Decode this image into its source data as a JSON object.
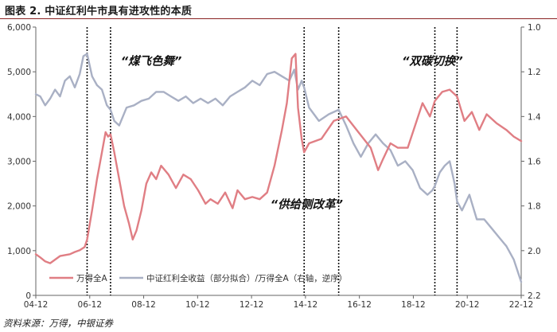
{
  "header": {
    "title": "图表 2. 中证红利牛市具有进攻性的本质"
  },
  "footer": {
    "source": "资料来源：万得，中银证券"
  },
  "colors": {
    "wind_all_a": "#e07e84",
    "dividend_return": "#a9b0c4",
    "title_rule": "#8b2323",
    "axis": "#666666"
  },
  "chart_data": {
    "type": "line",
    "x_ticks": [
      "04-12",
      "06-12",
      "08-12",
      "10-12",
      "12-12",
      "14-12",
      "16-12",
      "18-12",
      "20-12",
      "22-12"
    ],
    "x_range": [
      2004.92,
      2024.6
    ],
    "left_axis": {
      "ticks": [
        "0",
        "1,000",
        "2,000",
        "3,000",
        "4,000",
        "5,000",
        "6,000"
      ],
      "range": [
        0,
        6000
      ]
    },
    "right_axis": {
      "ticks": [
        "1.0",
        "1.2",
        "1.4",
        "1.6",
        "1.8",
        "2.0",
        "2.2"
      ],
      "range": [
        1.0,
        2.2
      ],
      "inverted": true
    },
    "legend": {
      "position": "bottom-left"
    },
    "grid": false,
    "annotations": [
      {
        "label": "“煤飞色舞”",
        "x": 2009.6,
        "y": 5150
      },
      {
        "label": "“供给侧改革”",
        "x": 2015.9,
        "y": 1950
      },
      {
        "label": "“双碳切换”",
        "x": 2021.0,
        "y": 5150
      }
    ],
    "vlines": [
      2007.0,
      2007.95,
      2015.8,
      2017.2,
      2021.1,
      2022.0
    ],
    "series": [
      {
        "name": "万得全A",
        "axis": "left",
        "x": [
          2004.92,
          2005.1,
          2005.3,
          2005.5,
          2005.7,
          2005.9,
          2006.1,
          2006.3,
          2006.5,
          2006.7,
          2006.9,
          2007.0,
          2007.2,
          2007.4,
          2007.6,
          2007.75,
          2007.85,
          2007.95,
          2008.1,
          2008.3,
          2008.5,
          2008.7,
          2008.85,
          2009.0,
          2009.2,
          2009.4,
          2009.6,
          2009.8,
          2010.0,
          2010.3,
          2010.6,
          2010.9,
          2011.2,
          2011.5,
          2011.8,
          2012.0,
          2012.3,
          2012.6,
          2012.9,
          2013.1,
          2013.4,
          2013.7,
          2014.0,
          2014.3,
          2014.6,
          2014.9,
          2015.1,
          2015.3,
          2015.45,
          2015.55,
          2015.7,
          2015.8,
          2016.0,
          2016.5,
          2017.0,
          2017.5,
          2018.0,
          2018.5,
          2018.8,
          2019.0,
          2019.3,
          2019.6,
          2020.0,
          2020.3,
          2020.6,
          2020.9,
          2021.1,
          2021.4,
          2021.7,
          2022.0,
          2022.3,
          2022.6,
          2022.9,
          2023.2,
          2023.6,
          2024.0,
          2024.3,
          2024.6
        ],
        "values": [
          920,
          850,
          760,
          720,
          800,
          880,
          900,
          920,
          970,
          1010,
          1080,
          1250,
          1900,
          2600,
          3200,
          3650,
          3550,
          3600,
          3200,
          2600,
          2000,
          1600,
          1250,
          1450,
          1900,
          2500,
          2750,
          2600,
          2900,
          2700,
          2400,
          2700,
          2600,
          2350,
          2050,
          2150,
          2050,
          2300,
          1950,
          2350,
          2150,
          2200,
          2150,
          2300,
          2900,
          3700,
          4300,
          5300,
          5400,
          4200,
          3500,
          3200,
          3400,
          3500,
          3900,
          4000,
          3650,
          3300,
          2800,
          3050,
          3400,
          3300,
          3300,
          3800,
          4300,
          4000,
          4350,
          4550,
          4600,
          4450,
          3900,
          4100,
          3700,
          4050,
          3850,
          3700,
          3550,
          3450
        ]
      },
      {
        "name": "中证红利全收益（部分拟合）/万得全A（右轴，逆序）",
        "axis": "right",
        "x": [
          2004.92,
          2005.1,
          2005.3,
          2005.5,
          2005.7,
          2005.9,
          2006.1,
          2006.3,
          2006.5,
          2006.7,
          2006.85,
          2007.0,
          2007.2,
          2007.4,
          2007.6,
          2007.8,
          2007.95,
          2008.1,
          2008.3,
          2008.6,
          2008.9,
          2009.2,
          2009.5,
          2009.8,
          2010.1,
          2010.4,
          2010.7,
          2011.0,
          2011.3,
          2011.6,
          2011.9,
          2012.2,
          2012.5,
          2012.8,
          2013.1,
          2013.4,
          2013.7,
          2014.0,
          2014.3,
          2014.6,
          2014.9,
          2015.2,
          2015.4,
          2015.55,
          2015.7,
          2015.8,
          2016.0,
          2016.4,
          2016.8,
          2017.2,
          2017.5,
          2017.8,
          2018.1,
          2018.4,
          2018.7,
          2019.0,
          2019.3,
          2019.6,
          2019.9,
          2020.2,
          2020.5,
          2020.8,
          2021.0,
          2021.1,
          2021.3,
          2021.5,
          2021.7,
          2021.9,
          2022.0,
          2022.2,
          2022.5,
          2022.8,
          2023.1,
          2023.4,
          2023.7,
          2024.0,
          2024.3,
          2024.6
        ],
        "values": [
          1.3,
          1.31,
          1.35,
          1.32,
          1.28,
          1.31,
          1.24,
          1.22,
          1.27,
          1.21,
          1.13,
          1.12,
          1.22,
          1.26,
          1.28,
          1.35,
          1.37,
          1.42,
          1.44,
          1.36,
          1.35,
          1.33,
          1.32,
          1.29,
          1.29,
          1.31,
          1.33,
          1.31,
          1.34,
          1.32,
          1.34,
          1.32,
          1.35,
          1.31,
          1.29,
          1.27,
          1.24,
          1.26,
          1.21,
          1.2,
          1.22,
          1.24,
          1.19,
          1.28,
          1.24,
          1.27,
          1.36,
          1.42,
          1.39,
          1.37,
          1.44,
          1.52,
          1.58,
          1.52,
          1.48,
          1.52,
          1.55,
          1.62,
          1.6,
          1.64,
          1.72,
          1.75,
          1.73,
          1.71,
          1.65,
          1.62,
          1.6,
          1.7,
          1.78,
          1.82,
          1.75,
          1.86,
          1.86,
          1.9,
          1.94,
          1.98,
          2.04,
          2.14
        ]
      }
    ]
  }
}
